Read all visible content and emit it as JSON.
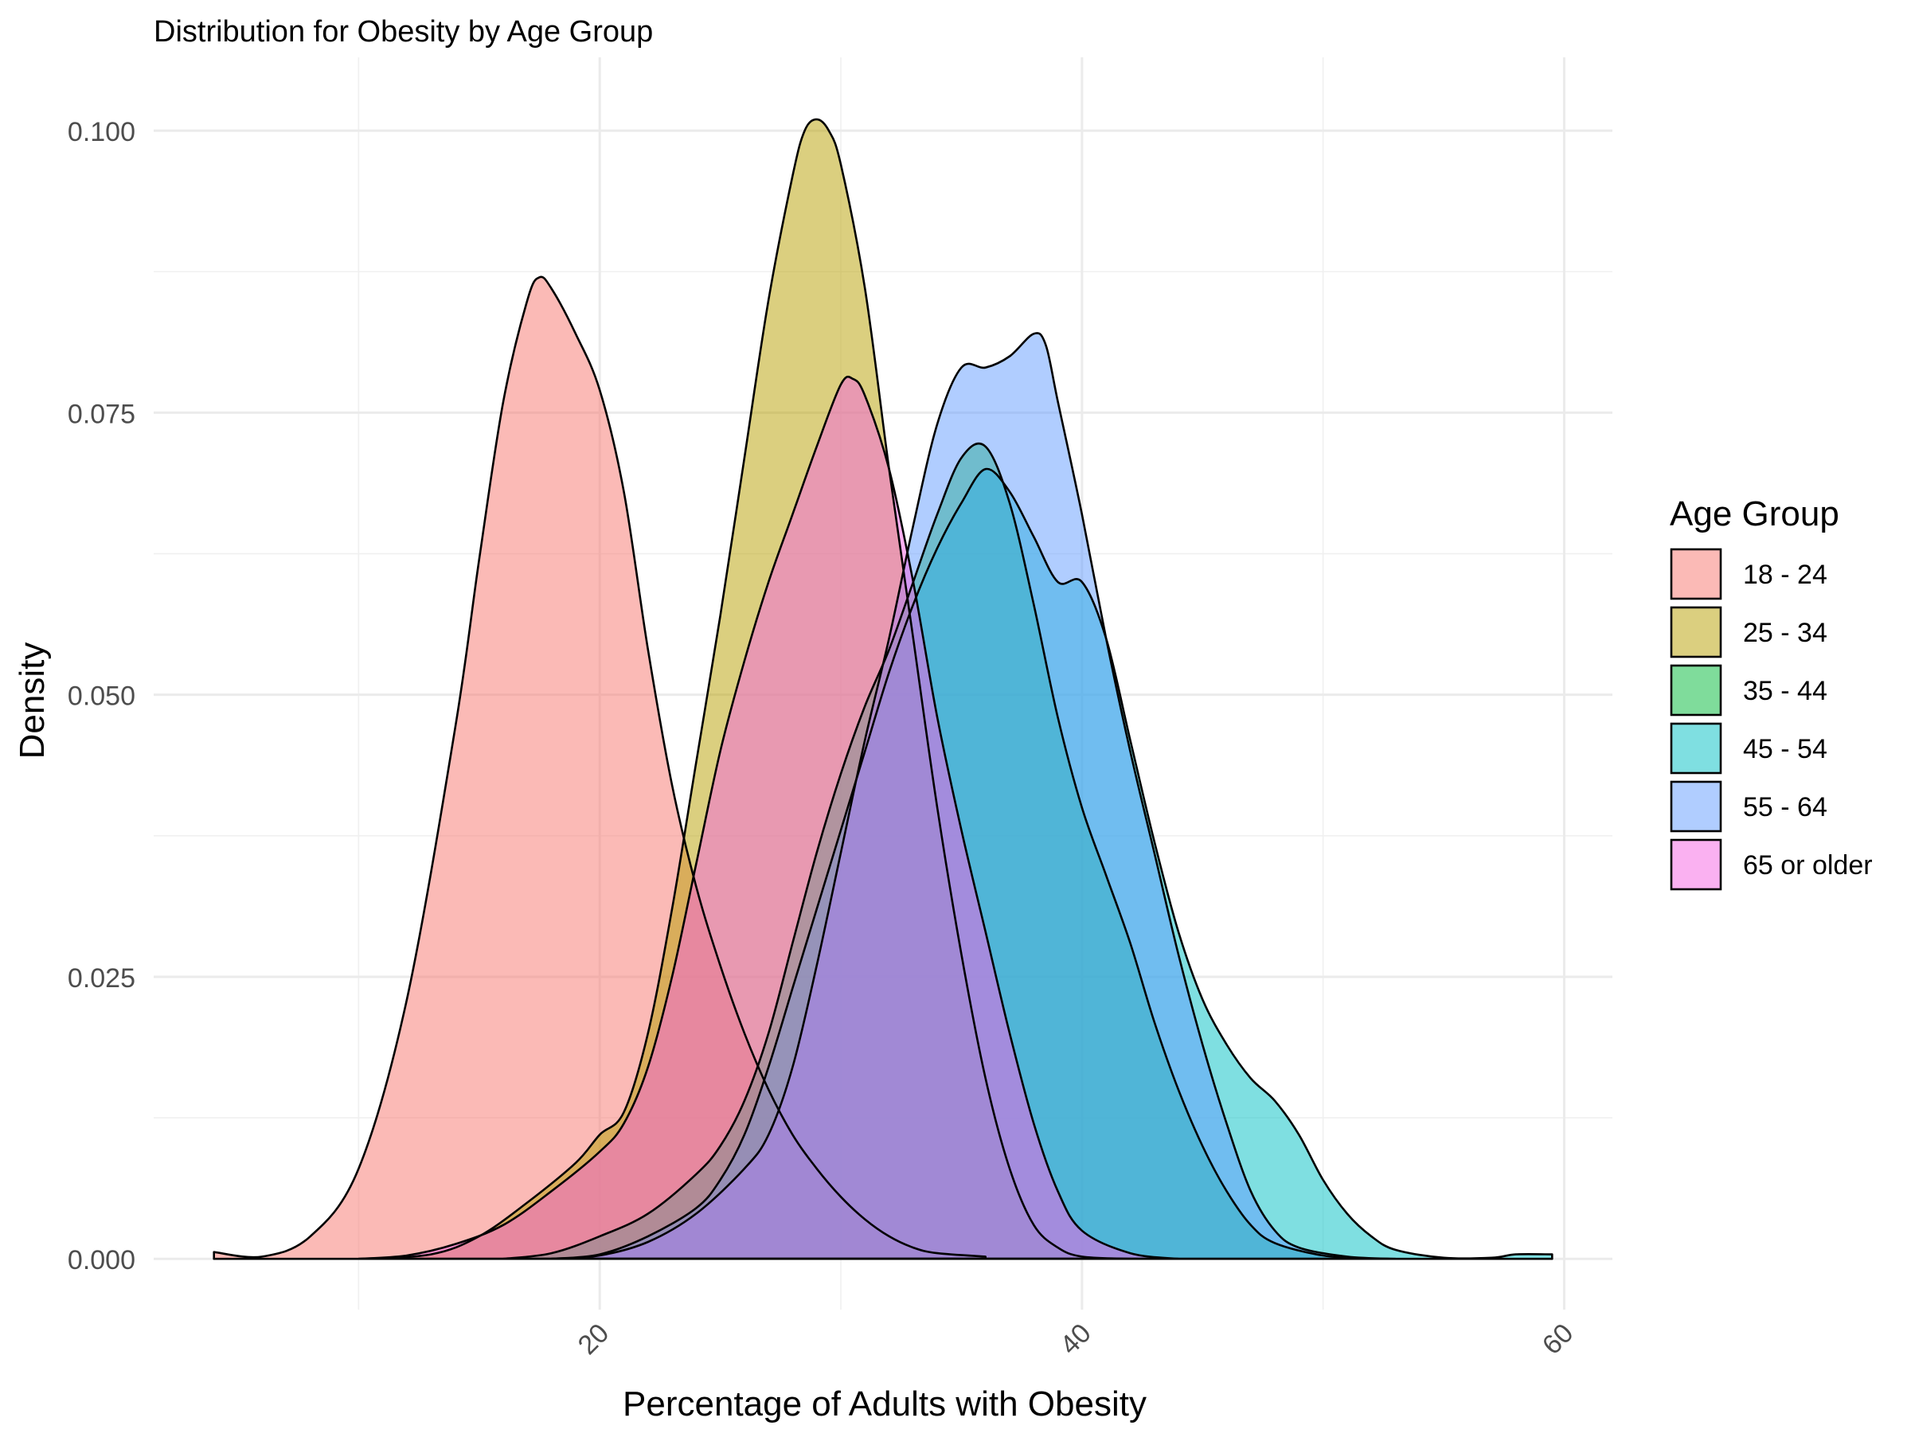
{
  "chart_data": {
    "type": "area",
    "title": "Distribution for Obesity by Age Group",
    "xlabel": "Percentage of Adults with Obesity",
    "ylabel": "Density",
    "xlim": [
      1.5,
      62.0
    ],
    "ylim": [
      -0.0045,
      0.1065
    ],
    "x_ticks": [
      20,
      40,
      60
    ],
    "x_tick_labels": [
      "20",
      "40",
      "60"
    ],
    "x_minor_ticks": [
      10,
      30,
      50
    ],
    "y_ticks": [
      0,
      0.025,
      0.05,
      0.075,
      0.1
    ],
    "y_tick_labels": [
      "0.000",
      "0.025",
      "0.050",
      "0.075",
      "0.100"
    ],
    "y_minor_ticks": [
      0.0125,
      0.0375,
      0.0625,
      0.0875
    ],
    "grid": true,
    "legend": {
      "title": "Age Group",
      "position": "right"
    },
    "series": [
      {
        "name": "18 - 24",
        "color": "#F8766D",
        "points": [
          [
            4,
            0.0006
          ],
          [
            6,
            0.0002
          ],
          [
            8,
            0.002
          ],
          [
            10,
            0.008
          ],
          [
            12,
            0.023
          ],
          [
            14,
            0.047
          ],
          [
            15,
            0.062
          ],
          [
            16,
            0.076
          ],
          [
            17,
            0.085
          ],
          [
            17.5,
            0.087
          ],
          [
            18,
            0.086
          ],
          [
            19,
            0.082
          ],
          [
            20,
            0.077
          ],
          [
            21,
            0.068
          ],
          [
            22,
            0.054
          ],
          [
            23,
            0.042
          ],
          [
            24,
            0.033
          ],
          [
            25,
            0.026
          ],
          [
            26,
            0.02
          ],
          [
            27,
            0.015
          ],
          [
            28,
            0.011
          ],
          [
            29,
            0.008
          ],
          [
            30,
            0.0055
          ],
          [
            31,
            0.0035
          ],
          [
            32,
            0.002
          ],
          [
            33,
            0.001
          ],
          [
            34,
            0.0005
          ],
          [
            36,
            0.0002
          ]
        ]
      },
      {
        "name": "25 - 34",
        "color": "#B79F00",
        "points": [
          [
            10,
            0
          ],
          [
            13,
            0.0004
          ],
          [
            15,
            0.002
          ],
          [
            17,
            0.005
          ],
          [
            19,
            0.0085
          ],
          [
            20,
            0.011
          ],
          [
            21,
            0.013
          ],
          [
            22,
            0.02
          ],
          [
            23,
            0.031
          ],
          [
            24,
            0.044
          ],
          [
            25,
            0.057
          ],
          [
            26,
            0.071
          ],
          [
            27,
            0.085
          ],
          [
            28,
            0.096
          ],
          [
            28.5,
            0.1
          ],
          [
            29,
            0.101
          ],
          [
            29.5,
            0.1
          ],
          [
            30,
            0.097
          ],
          [
            31,
            0.086
          ],
          [
            32,
            0.07
          ],
          [
            33,
            0.055
          ],
          [
            34,
            0.04
          ],
          [
            35,
            0.027
          ],
          [
            36,
            0.016
          ],
          [
            37,
            0.008
          ],
          [
            38,
            0.003
          ],
          [
            39,
            0.001
          ],
          [
            40,
            0.0002
          ],
          [
            42,
            0
          ]
        ]
      },
      {
        "name": "35 - 44",
        "color": "#00BA38",
        "points": [
          [
            16,
            0
          ],
          [
            18,
            0.0005
          ],
          [
            20,
            0.002
          ],
          [
            22,
            0.004
          ],
          [
            24,
            0.0075
          ],
          [
            25,
            0.01
          ],
          [
            26,
            0.014
          ],
          [
            27,
            0.02
          ],
          [
            28,
            0.028
          ],
          [
            29,
            0.036
          ],
          [
            30,
            0.043
          ],
          [
            31,
            0.049
          ],
          [
            32,
            0.054
          ],
          [
            33,
            0.06
          ],
          [
            34,
            0.066
          ],
          [
            35,
            0.071
          ],
          [
            36,
            0.072
          ],
          [
            37,
            0.067
          ],
          [
            38,
            0.058
          ],
          [
            39,
            0.048
          ],
          [
            40,
            0.04
          ],
          [
            41,
            0.034
          ],
          [
            42,
            0.028
          ],
          [
            43,
            0.021
          ],
          [
            44,
            0.015
          ],
          [
            45,
            0.01
          ],
          [
            46,
            0.006
          ],
          [
            47,
            0.003
          ],
          [
            48,
            0.0014
          ],
          [
            50,
            0.0003
          ],
          [
            52,
            0
          ]
        ]
      },
      {
        "name": "45 - 54",
        "color": "#00BFC4",
        "points": [
          [
            18,
            0
          ],
          [
            20,
            0.0004
          ],
          [
            22,
            0.002
          ],
          [
            24,
            0.0045
          ],
          [
            25,
            0.007
          ],
          [
            26,
            0.011
          ],
          [
            27,
            0.017
          ],
          [
            28,
            0.024
          ],
          [
            29,
            0.031
          ],
          [
            30,
            0.038
          ],
          [
            31,
            0.045
          ],
          [
            32,
            0.052
          ],
          [
            33,
            0.058
          ],
          [
            34,
            0.063
          ],
          [
            35,
            0.067
          ],
          [
            36,
            0.07
          ],
          [
            37,
            0.068
          ],
          [
            38,
            0.064
          ],
          [
            39,
            0.06
          ],
          [
            40,
            0.06
          ],
          [
            41,
            0.055
          ],
          [
            42,
            0.046
          ],
          [
            43,
            0.037
          ],
          [
            44,
            0.029
          ],
          [
            45,
            0.023
          ],
          [
            46,
            0.019
          ],
          [
            47,
            0.016
          ],
          [
            48,
            0.014
          ],
          [
            49,
            0.011
          ],
          [
            50,
            0.007
          ],
          [
            51,
            0.004
          ],
          [
            52,
            0.002
          ],
          [
            53,
            0.0008
          ],
          [
            55,
            0.0001
          ],
          [
            57,
            0.0001
          ],
          [
            58,
            0.0004
          ],
          [
            59.5,
            0.0004
          ]
        ]
      },
      {
        "name": "55 - 64",
        "color": "#619CFF",
        "points": [
          [
            18,
            0
          ],
          [
            20,
            0.0003
          ],
          [
            22,
            0.0015
          ],
          [
            24,
            0.004
          ],
          [
            26,
            0.008
          ],
          [
            27,
            0.011
          ],
          [
            28,
            0.017
          ],
          [
            29,
            0.026
          ],
          [
            30,
            0.036
          ],
          [
            31,
            0.046
          ],
          [
            32,
            0.055
          ],
          [
            33,
            0.065
          ],
          [
            34,
            0.074
          ],
          [
            35,
            0.079
          ],
          [
            36,
            0.079
          ],
          [
            37,
            0.08
          ],
          [
            38,
            0.082
          ],
          [
            38.5,
            0.081
          ],
          [
            39,
            0.076
          ],
          [
            40,
            0.066
          ],
          [
            41,
            0.055
          ],
          [
            42,
            0.045
          ],
          [
            43,
            0.036
          ],
          [
            44,
            0.027
          ],
          [
            45,
            0.019
          ],
          [
            46,
            0.012
          ],
          [
            47,
            0.006
          ],
          [
            48,
            0.0025
          ],
          [
            49,
            0.001
          ],
          [
            51,
            0.0002
          ],
          [
            53,
            0
          ]
        ]
      },
      {
        "name": "65 or older",
        "color": "#F564E3",
        "points": [
          [
            10,
            0
          ],
          [
            12,
            0.0003
          ],
          [
            14,
            0.0013
          ],
          [
            16,
            0.003
          ],
          [
            18,
            0.006
          ],
          [
            20,
            0.0095
          ],
          [
            21,
            0.012
          ],
          [
            22,
            0.017
          ],
          [
            23,
            0.025
          ],
          [
            24,
            0.035
          ],
          [
            25,
            0.045
          ],
          [
            26,
            0.053
          ],
          [
            27,
            0.06
          ],
          [
            28,
            0.066
          ],
          [
            29,
            0.072
          ],
          [
            30,
            0.0775
          ],
          [
            30.5,
            0.078
          ],
          [
            31,
            0.0765
          ],
          [
            32,
            0.07
          ],
          [
            33,
            0.06
          ],
          [
            34,
            0.048
          ],
          [
            35,
            0.038
          ],
          [
            36,
            0.029
          ],
          [
            37,
            0.02
          ],
          [
            38,
            0.012
          ],
          [
            39,
            0.006
          ],
          [
            40,
            0.0025
          ],
          [
            42,
            0.0005
          ],
          [
            44,
            0
          ]
        ]
      }
    ]
  }
}
